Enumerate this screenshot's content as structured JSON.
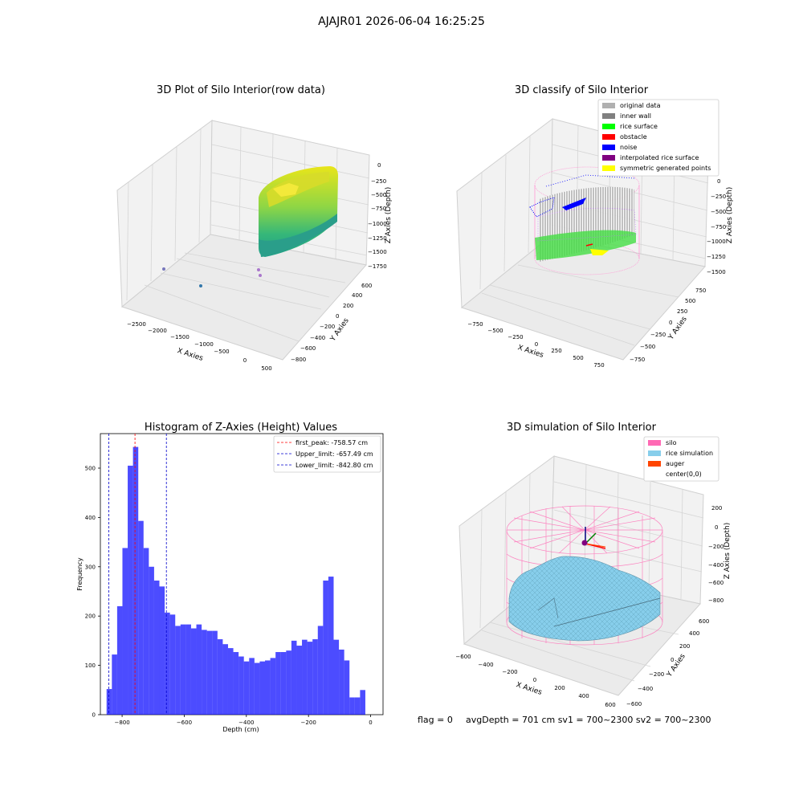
{
  "suptitle": "AJAJR01 2026-06-04 16:25:25",
  "panel1": {
    "title": "3D Plot of Silo Interior(row data)",
    "xlabel": "X Axies",
    "ylabel": "Y Axies",
    "zlabel": "Z Axies (Depth)",
    "xticks": [
      "−2500",
      "−2000",
      "−1500",
      "−1000",
      "−500",
      "0",
      "500"
    ],
    "yticks": [
      "−800",
      "−600",
      "−400",
      "−200",
      "0",
      "200",
      "400",
      "600"
    ],
    "zticks": [
      "0",
      "−250",
      "−500",
      "−750",
      "−1000",
      "−1250",
      "−1500",
      "−1750"
    ]
  },
  "panel2": {
    "title": "3D classify of Silo Interior",
    "xlabel": "X Axies",
    "ylabel": "Y Axies",
    "zlabel": "Z Axies (Depth)",
    "xticks": [
      "−750",
      "−500",
      "−250",
      "0",
      "250",
      "500",
      "750"
    ],
    "yticks": [
      "−750",
      "−500",
      "−250",
      "0",
      "250",
      "500",
      "750"
    ],
    "zticks": [
      "0",
      "−250",
      "−500",
      "−750",
      "−1000",
      "−1250",
      "−1500"
    ],
    "legend": [
      {
        "label": "original data",
        "color": "#b0b0b0"
      },
      {
        "label": "inner wall",
        "color": "#808080"
      },
      {
        "label": "rice surface",
        "color": "#00ff00"
      },
      {
        "label": "obstacle",
        "color": "#ff0000"
      },
      {
        "label": "noise",
        "color": "#0000ff"
      },
      {
        "label": "interpolated rice surface",
        "color": "#800080"
      },
      {
        "label": "symmetric generated points",
        "color": "#ffff00"
      }
    ]
  },
  "panel4": {
    "title": "3D simulation of Silo Interior",
    "xlabel": "X Axies",
    "ylabel": "Y Axies",
    "zlabel": "Z Axies (Depth)",
    "xticks": [
      "−600",
      "−400",
      "−200",
      "0",
      "200",
      "400",
      "600"
    ],
    "yticks": [
      "−600",
      "−400",
      "−200",
      "0",
      "200",
      "400",
      "600"
    ],
    "zticks": [
      "200",
      "0",
      "−200",
      "−400",
      "−600",
      "−800"
    ],
    "legend": [
      {
        "label": "silo",
        "color": "#ff69b4"
      },
      {
        "label": "rice simulation",
        "color": "#87ceeb"
      },
      {
        "label": "auger",
        "color": "#ff4500"
      },
      {
        "label": "center(0,0)",
        "color": ""
      }
    ]
  },
  "status": {
    "flag": "flag = 0",
    "avg": "avgDepth = 701 cm  sv1 = 700~2300  sv2 = 700~2300"
  },
  "chart_data": {
    "type": "bar",
    "title": "Histogram of Z-Axies (Height) Values",
    "xlabel": "Depth (cm)",
    "ylabel": "Frequency",
    "xlim": [
      -870,
      40
    ],
    "ylim": [
      0,
      570
    ],
    "xticks": [
      -800,
      -600,
      -400,
      -200,
      0
    ],
    "yticks": [
      0,
      100,
      200,
      300,
      400,
      500
    ],
    "bar_color": "#0000ff",
    "bin_start": -850,
    "bin_width": 17,
    "values": [
      52,
      122,
      220,
      338,
      505,
      543,
      393,
      338,
      300,
      272,
      260,
      207,
      203,
      180,
      183,
      183,
      175,
      183,
      172,
      170,
      170,
      153,
      143,
      135,
      127,
      118,
      108,
      115,
      105,
      108,
      110,
      115,
      127,
      127,
      130,
      150,
      140,
      152,
      148,
      153,
      180,
      272,
      280,
      152,
      132,
      110,
      35,
      35,
      50
    ],
    "lines": [
      {
        "label": "first_peak: -758.57 cm",
        "x": -758.57,
        "color": "#ff0000"
      },
      {
        "label": "Upper_limit: -657.49 cm",
        "x": -657.49,
        "color": "#0000cc"
      },
      {
        "label": "Lower_limit: -842.80 cm",
        "x": -842.8,
        "color": "#0000cc"
      }
    ]
  }
}
